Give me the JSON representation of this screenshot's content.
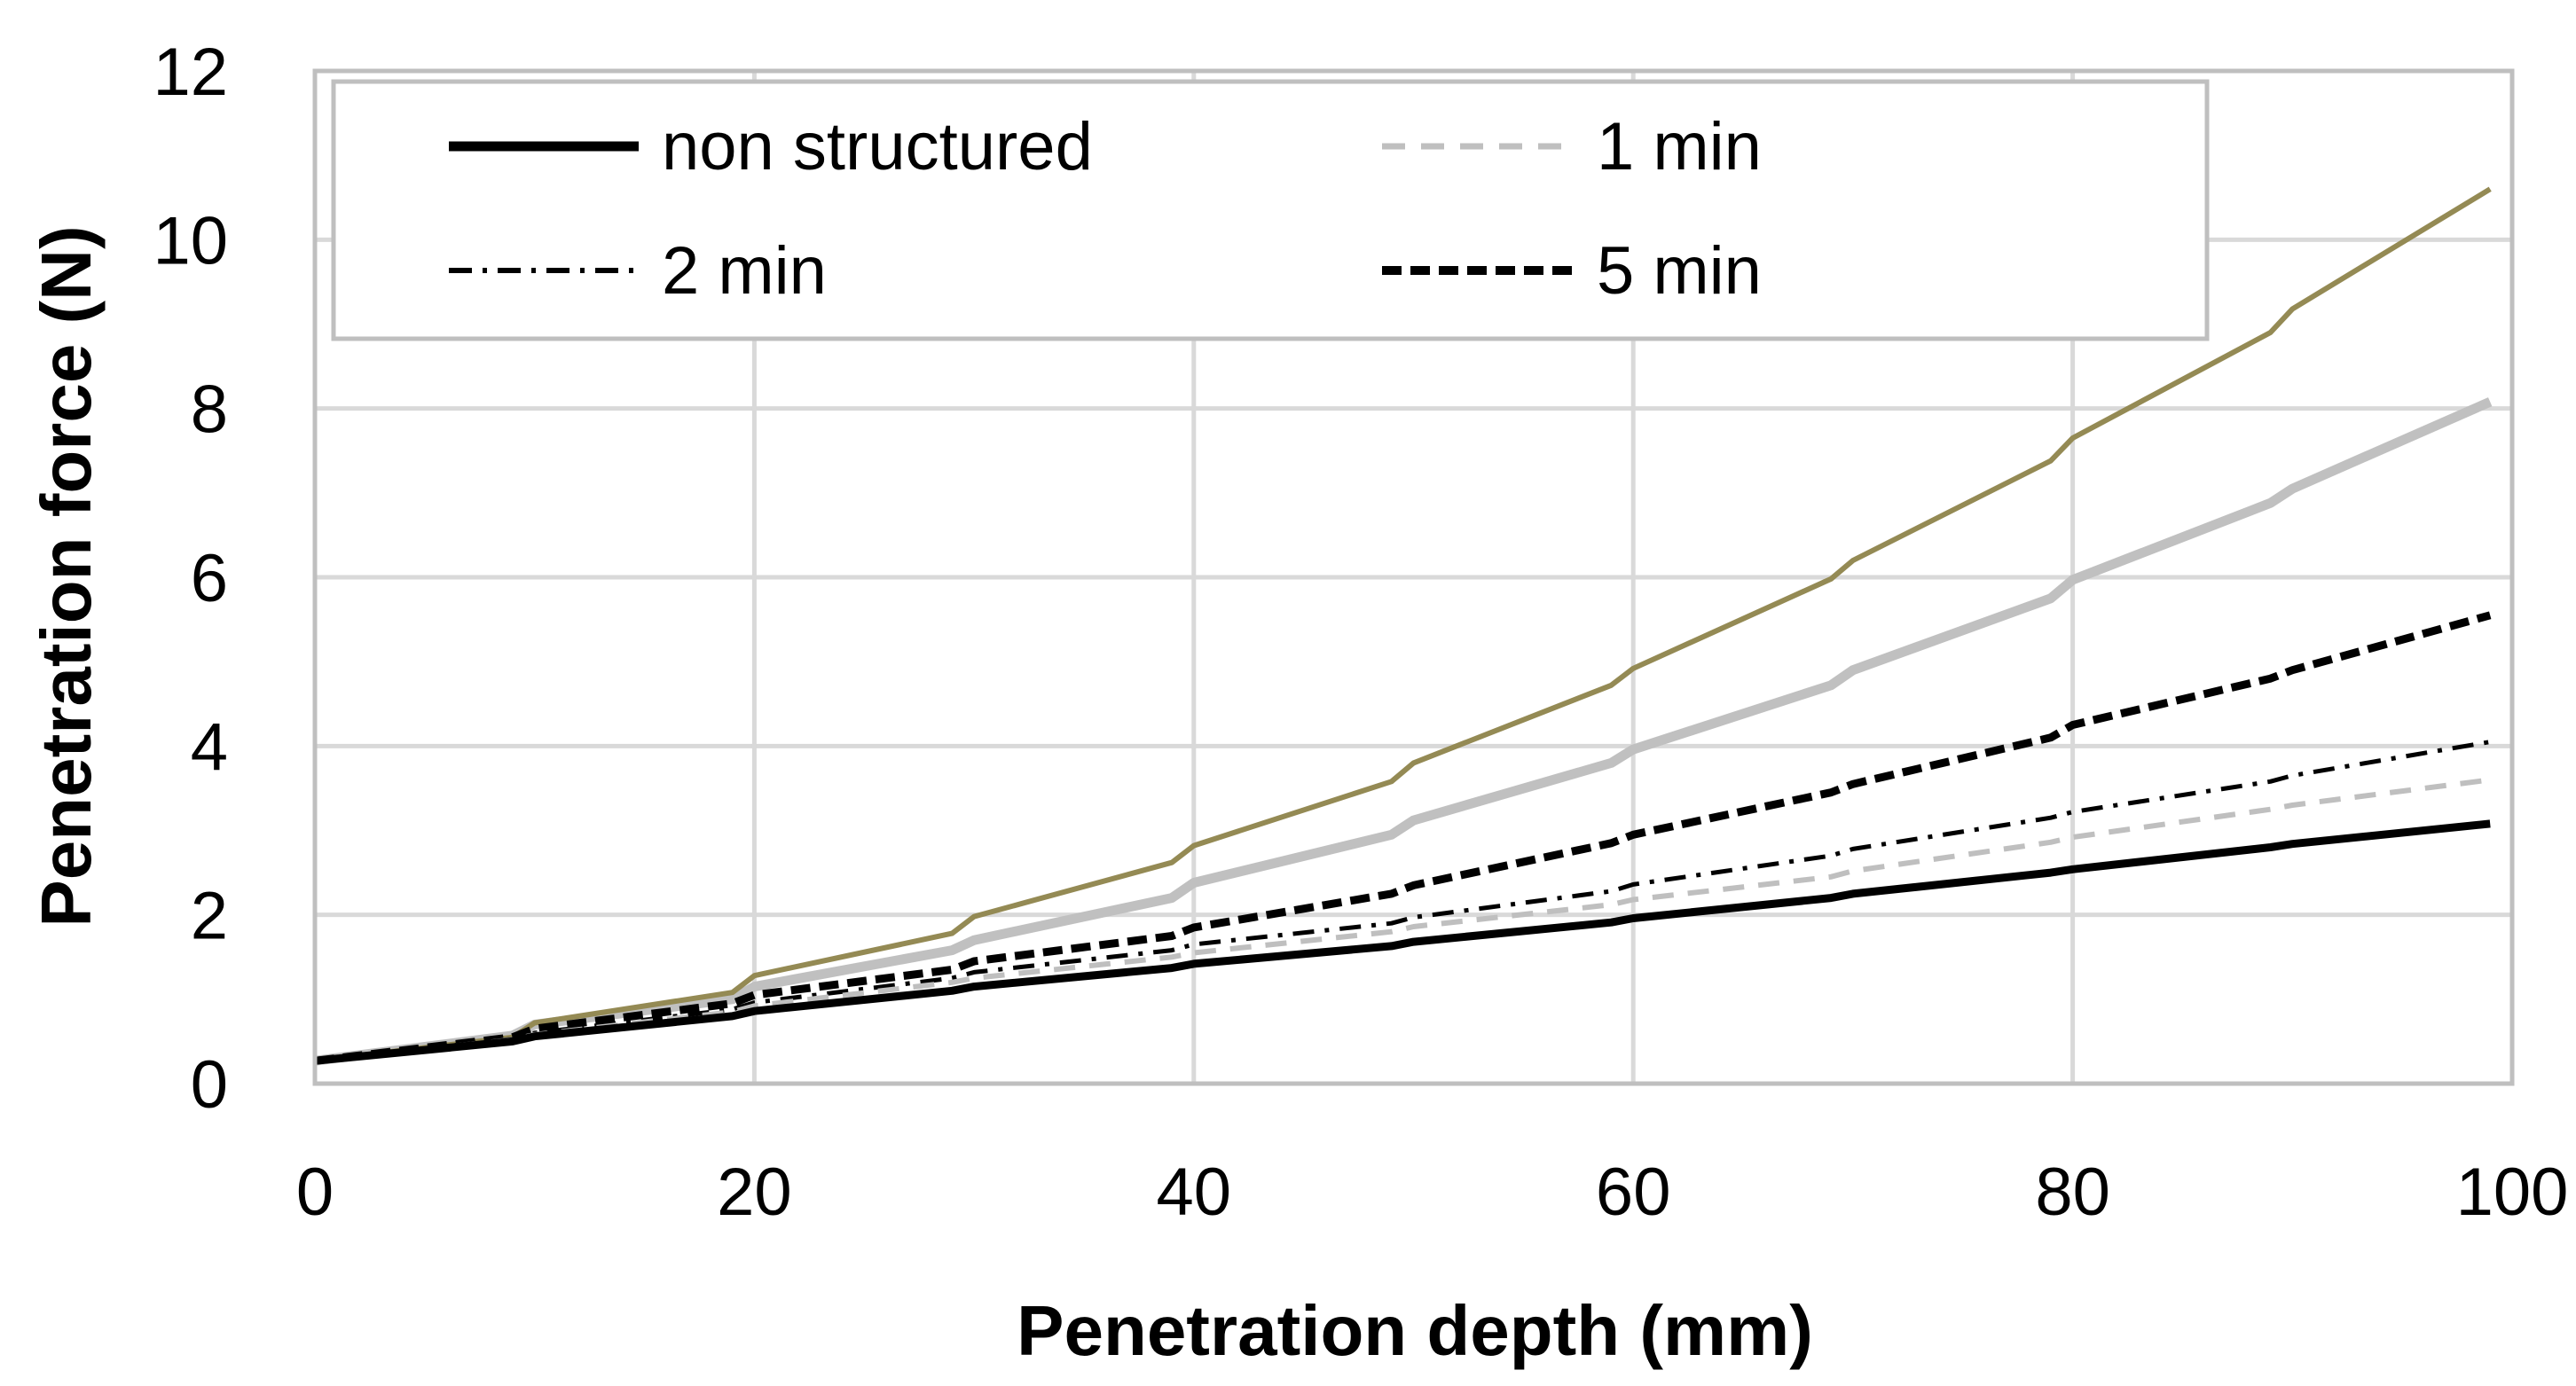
{
  "chart_data": {
    "type": "line",
    "title": "",
    "xlabel": "Penetration depth (mm)",
    "ylabel": "Penetration force (N)",
    "xlim": [
      0,
      100
    ],
    "ylim": [
      0,
      12
    ],
    "x_ticks": [
      "0",
      "20",
      "40",
      "60",
      "80",
      "100"
    ],
    "y_ticks": [
      "0",
      "2",
      "4",
      "6",
      "8",
      "10",
      "12"
    ],
    "grid": true,
    "legend_position": "top",
    "x": [
      0,
      9,
      10,
      19,
      20,
      29,
      30,
      39,
      40,
      49,
      50,
      59,
      60,
      69,
      70,
      79,
      80,
      89,
      90,
      99
    ],
    "series": [
      {
        "name": "non structured",
        "in_legend": true,
        "style": "solid",
        "color": "#000000",
        "values": [
          0.27,
          0.5,
          0.56,
          0.8,
          0.86,
          1.1,
          1.15,
          1.37,
          1.42,
          1.63,
          1.68,
          1.91,
          1.96,
          2.2,
          2.25,
          2.5,
          2.54,
          2.8,
          2.84,
          3.08
        ]
      },
      {
        "name": "1 min",
        "in_legend": true,
        "style": "dashed",
        "color": "#bfbfbf",
        "values": [
          0.27,
          0.52,
          0.58,
          0.85,
          0.92,
          1.2,
          1.25,
          1.5,
          1.55,
          1.8,
          1.86,
          2.12,
          2.18,
          2.45,
          2.52,
          2.86,
          2.92,
          3.25,
          3.3,
          3.6
        ]
      },
      {
        "name": "2 min",
        "in_legend": true,
        "style": "dash-dot",
        "color": "#000000",
        "values": [
          0.27,
          0.53,
          0.6,
          0.88,
          0.96,
          1.25,
          1.32,
          1.58,
          1.65,
          1.9,
          1.97,
          2.28,
          2.36,
          2.7,
          2.78,
          3.15,
          3.22,
          3.58,
          3.65,
          4.05
        ]
      },
      {
        "name": "5 min",
        "in_legend": true,
        "style": "dashed-bold",
        "color": "#000000",
        "values": [
          0.27,
          0.55,
          0.65,
          0.95,
          1.05,
          1.35,
          1.45,
          1.75,
          1.85,
          2.25,
          2.35,
          2.85,
          2.95,
          3.45,
          3.55,
          4.1,
          4.25,
          4.8,
          4.9,
          5.55
        ]
      },
      {
        "name": "",
        "in_legend": false,
        "style": "solid-thick",
        "color": "#c0c0c0",
        "values": [
          0.27,
          0.57,
          0.7,
          1.0,
          1.15,
          1.58,
          1.7,
          2.2,
          2.38,
          2.95,
          3.12,
          3.8,
          3.96,
          4.72,
          4.9,
          5.75,
          5.97,
          6.88,
          7.05,
          8.08
        ]
      },
      {
        "name": "",
        "in_legend": false,
        "style": "solid",
        "color": "#948a54",
        "values": [
          0.27,
          0.55,
          0.72,
          1.08,
          1.28,
          1.78,
          1.98,
          2.62,
          2.82,
          3.58,
          3.8,
          4.72,
          4.92,
          5.98,
          6.2,
          7.38,
          7.65,
          8.9,
          9.18,
          10.6
        ]
      }
    ]
  }
}
